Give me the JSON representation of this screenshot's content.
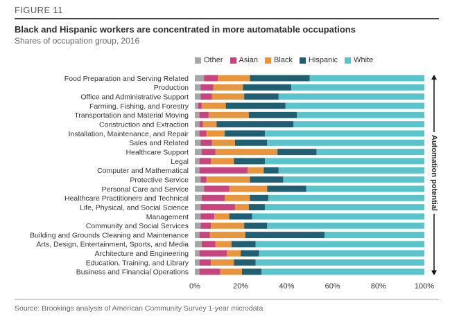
{
  "figure_label": "FIGURE 11",
  "title": "Black and Hispanic workers are concentrated in more automatable occupations",
  "subtitle": "Shares of occupation group, 2016",
  "source": "Source: Brookings analysis of American Community Survey 1-year microdata",
  "axis_side_label": "Automation potential",
  "colors": {
    "Other": "#a6a6a6",
    "Asian": "#c8447f",
    "Black": "#e8953c",
    "Hispanic": "#1f5f71",
    "White": "#57c5cb"
  },
  "chart_data": {
    "type": "bar",
    "orientation": "horizontal",
    "stacked": true,
    "title": "Black and Hispanic workers are concentrated in more automatable occupations",
    "subtitle": "Shares of occupation group, 2016",
    "xlim": [
      0,
      100
    ],
    "xticks": [
      0,
      20,
      40,
      60,
      80,
      100
    ],
    "xtick_labels": [
      "0%",
      "20%",
      "40%",
      "60%",
      "80%",
      "100%"
    ],
    "legend_position": "top",
    "grid": false,
    "categories": [
      "Food Preparation and Serving Related",
      "Production",
      "Office and Administrative Support",
      "Farming, Fishing, and Forestry",
      "Transportation and Material Moving",
      "Construction and Extraction",
      "Installation, Maintenance, and Repair",
      "Sales and Related",
      "Healthcare Support",
      "Legal",
      "Computer and Mathematical",
      "Protective Service",
      "Personal Care and Service",
      "Healthcare Practitioners and Technical",
      "Life, Physical, and Social Science",
      "Management",
      "Community and Social Services",
      "Building and Grounds Cleaning and Maintenance",
      "Arts, Design, Entertainment, Sports, and Media",
      "Architecture and Engineering",
      "Education, Training, and Library",
      "Business and Financial Operations"
    ],
    "series": [
      {
        "name": "Other",
        "values": [
          4,
          2.5,
          2.5,
          1.5,
          2,
          2,
          2,
          2.5,
          3,
          2,
          2,
          2.5,
          4,
          3,
          2.5,
          2.5,
          2.5,
          2,
          3,
          2,
          2,
          2
        ]
      },
      {
        "name": "Asian",
        "values": [
          6,
          5.5,
          5,
          1.5,
          4,
          1.5,
          3,
          5,
          6,
          5,
          21,
          2.5,
          11,
          10,
          15,
          6,
          4.5,
          4.5,
          6,
          12,
          5,
          9
        ]
      },
      {
        "name": "Black",
        "values": [
          14,
          13,
          14,
          10.5,
          17.5,
          6,
          8,
          10,
          27,
          10,
          7,
          19,
          16.5,
          11,
          6,
          6.5,
          14.5,
          15.5,
          7,
          6,
          10,
          9.5
        ]
      },
      {
        "name": "Hispanic",
        "values": [
          26,
          21,
          15,
          26,
          21,
          33.5,
          17.5,
          14,
          17,
          13.5,
          6.5,
          14.5,
          17,
          8,
          7,
          10,
          10,
          34.5,
          10.5,
          8,
          9.5,
          8.5
        ]
      },
      {
        "name": "White",
        "values": [
          50,
          58,
          63.5,
          60.5,
          55.5,
          57,
          69.5,
          68.5,
          47,
          69.5,
          63.5,
          61.5,
          51.5,
          68,
          69.5,
          75,
          68.5,
          43.5,
          73.5,
          72,
          73.5,
          71
        ]
      }
    ]
  }
}
